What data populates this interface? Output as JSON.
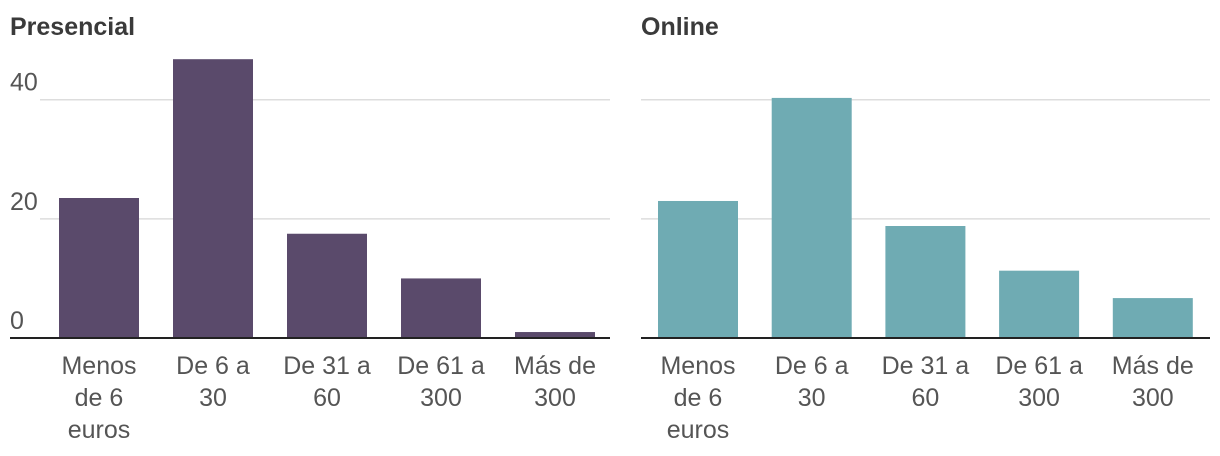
{
  "chart_data": [
    {
      "type": "bar",
      "title": "Presencial",
      "categories": [
        [
          "Menos",
          "de 6",
          "euros"
        ],
        [
          "De 6 a",
          "30"
        ],
        [
          "De 31 a",
          "60"
        ],
        [
          "De 61 a",
          "300"
        ],
        [
          "Más de",
          "300"
        ]
      ],
      "values": [
        23.5,
        46.8,
        17.5,
        10,
        1
      ],
      "ylim": [
        0,
        47
      ],
      "yticks": [
        0,
        20,
        40
      ],
      "grid": true,
      "color": "#5a4a6b"
    },
    {
      "type": "bar",
      "title": "Online",
      "categories": [
        [
          "Menos",
          "de 6",
          "euros"
        ],
        [
          "De 6 a",
          "30"
        ],
        [
          "De 31 a",
          "60"
        ],
        [
          "De 61 a",
          "300"
        ],
        [
          "Más de",
          "300"
        ]
      ],
      "values": [
        23,
        40.3,
        18.8,
        11.3,
        6.7
      ],
      "ylim": [
        0,
        47
      ],
      "yticks": [
        0,
        20,
        40
      ],
      "grid": true,
      "color": "#6fabb3"
    }
  ]
}
